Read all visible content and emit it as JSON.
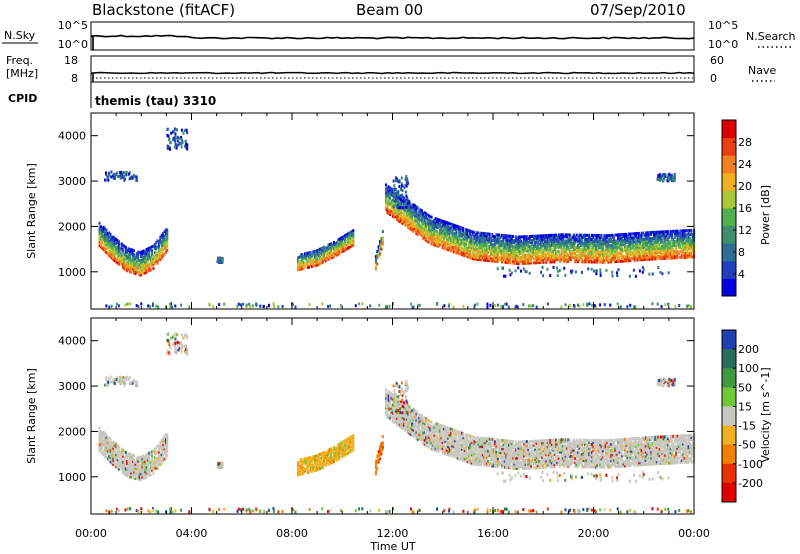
{
  "header": {
    "station": "Blackstone (fitACF)",
    "beam": "Beam 00",
    "date": "07/Sep/2010"
  },
  "summary_panels": {
    "nsky_label": "N.Sky",
    "nsky_ticks": [
      "10^5",
      "10^0"
    ],
    "nsearch_label": "N.Search",
    "nsearch_ticks": [
      "10^5",
      "10^0"
    ],
    "freq_label_line1": "Freq.",
    "freq_label_line2": "[MHz]",
    "freq_ticks": [
      "18",
      "8"
    ],
    "nave_label": "Nave",
    "nave_ticks": [
      "60",
      "0"
    ],
    "cpid_label": "CPID",
    "cpid_value": "themis (tau) 3310"
  },
  "chart_data": [
    {
      "type": "heatmap",
      "name": "power",
      "ylabel": "Slant Range [km]",
      "y_ticks": [
        "4000",
        "3000",
        "2000",
        "1000"
      ],
      "y_tick_values": [
        4000,
        3000,
        2000,
        1000
      ],
      "ylim": [
        180,
        4500
      ],
      "xlabel": "Time UT",
      "x_ticks": [
        "00:00",
        "04:00",
        "08:00",
        "12:00",
        "16:00",
        "20:00",
        "00:00"
      ],
      "x_tick_hours": [
        0,
        4,
        8,
        12,
        16,
        20,
        24
      ],
      "xlim": [
        0,
        24
      ],
      "colorbar": {
        "label": "Power [dB]",
        "ticks": [
          "28",
          "24",
          "20",
          "16",
          "12",
          "8",
          "4"
        ],
        "tick_values": [
          28,
          24,
          20,
          16,
          12,
          8,
          4
        ],
        "range": [
          0,
          32
        ],
        "colors": [
          "#0000e0",
          "#2040c0",
          "#2e6e90",
          "#3d8f70",
          "#52b04f",
          "#a8c83a",
          "#f0b020",
          "#f08020",
          "#e84010",
          "#d80000"
        ]
      },
      "echo_regions": [
        {
          "t0": 0.3,
          "t1": 3.0,
          "r_center": [
            1800,
            1500,
            1250,
            1150,
            1300,
            1700
          ],
          "width": 500
        },
        {
          "t0": 8.2,
          "t1": 10.4,
          "r_center": [
            1200,
            1300,
            1500,
            1750
          ],
          "width": 350
        },
        {
          "t0": 11.3,
          "t1": 11.6,
          "r_center": [
            1200,
            1800
          ],
          "width": 300
        },
        {
          "t0": 11.7,
          "t1": 24.0,
          "r_center": [
            2600,
            1900,
            1550,
            1450,
            1500,
            1480,
            1550,
            1600
          ],
          "width": 600
        }
      ]
    },
    {
      "type": "heatmap",
      "name": "velocity",
      "ylabel": "Slant Range [km]",
      "y_ticks": [
        "4000",
        "3000",
        "2000",
        "1000"
      ],
      "y_tick_values": [
        4000,
        3000,
        2000,
        1000
      ],
      "ylim": [
        180,
        4500
      ],
      "xlabel": "Time UT",
      "x_ticks": [
        "00:00",
        "04:00",
        "08:00",
        "12:00",
        "16:00",
        "20:00",
        "00:00"
      ],
      "x_tick_hours": [
        0,
        4,
        8,
        12,
        16,
        20,
        24
      ],
      "xlim": [
        0,
        24
      ],
      "colorbar": {
        "label": "Velocity [m s^-1]",
        "ticks": [
          "200",
          "100",
          "50",
          "15",
          "-15",
          "-50",
          "-100",
          "-200"
        ],
        "colors": [
          "#2040b0",
          "#2a6e5a",
          "#3e9a3e",
          "#70c838",
          "#c8c8c0",
          "#f0b020",
          "#f08000",
          "#e83000",
          "#e00000"
        ]
      }
    }
  ]
}
